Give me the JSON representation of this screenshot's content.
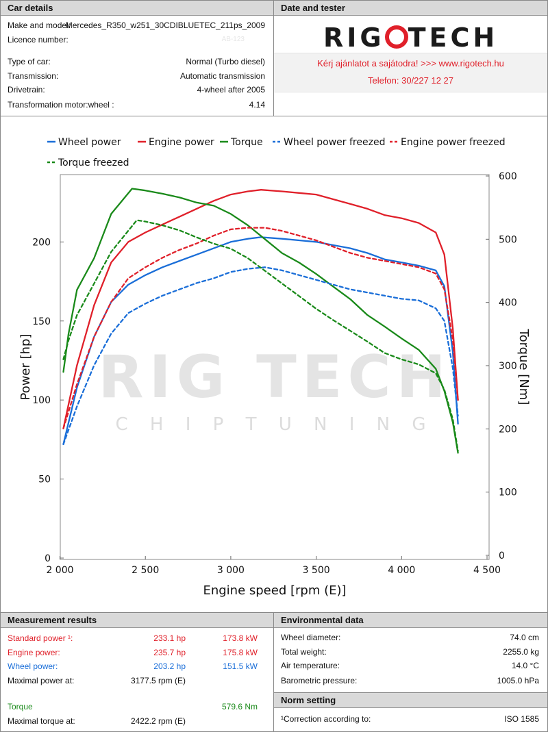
{
  "car_details": {
    "title": "Car details",
    "rows": [
      {
        "label": "Make and model:",
        "value": "Mercedes_R350_w251_30CDIBLUETEC_211ps_2009"
      },
      {
        "label": "Licence number:",
        "value": "AB-123"
      },
      {
        "label": "Type of car:",
        "value": "Normal (Turbo diesel)"
      },
      {
        "label": "Transmission:",
        "value": "Automatic transmission"
      },
      {
        "label": "Drivetrain:",
        "value": "4-wheel after 2005"
      },
      {
        "label": "Transformation motor:wheel :",
        "value": "4.14"
      }
    ]
  },
  "date_tester": {
    "title": "Date and tester",
    "logo_text": [
      "RIG",
      "TECH"
    ],
    "offer_line": "Kérj ajánlatot a sajátodra!  >>>  www.rigotech.hu",
    "phone_line": "Telefon: 30/227 12 27"
  },
  "watermark": {
    "big": "RIG TECH",
    "small": "C H I P T U N I N G"
  },
  "colors": {
    "wheel": "#1a6ed8",
    "engine": "#e0202a",
    "torque": "#1a8a1a"
  },
  "chart_data": {
    "type": "line",
    "xlabel": "Engine speed [rpm (E)]",
    "ylabel": "Power [hp]",
    "y2label": "Torque [Nm]",
    "xlim": [
      2000,
      4500
    ],
    "ylim": [
      0,
      240
    ],
    "y2lim": [
      0,
      600
    ],
    "xticks": [
      2000,
      2500,
      3000,
      3500,
      4000,
      4500
    ],
    "xtick_labels": [
      "2 000",
      "2 500",
      "3 000",
      "3 500",
      "4 000",
      "4 500"
    ],
    "yticks": [
      0,
      50,
      100,
      150,
      200
    ],
    "y2ticks": [
      0,
      100,
      200,
      300,
      400,
      500,
      600
    ],
    "legend": [
      "Wheel power",
      "Engine power",
      "Torque",
      "Wheel power freezed",
      "Engine power freezed",
      "Torque freezed"
    ],
    "series": [
      {
        "name": "Wheel power",
        "axis": "left",
        "style": "solid",
        "color": "#1a6ed8",
        "x": [
          2020,
          2100,
          2200,
          2300,
          2400,
          2500,
          2600,
          2700,
          2800,
          2900,
          3000,
          3100,
          3177,
          3300,
          3400,
          3500,
          3600,
          3700,
          3800,
          3900,
          4000,
          4100,
          4200,
          4250,
          4300,
          4330
        ],
        "y": [
          72,
          108,
          140,
          162,
          173,
          179,
          184,
          188,
          192,
          196,
          200,
          202,
          203,
          202,
          201,
          200,
          198,
          196,
          193,
          189,
          187,
          185,
          182,
          172,
          130,
          85
        ]
      },
      {
        "name": "Engine power",
        "axis": "left",
        "style": "solid",
        "color": "#e0202a",
        "x": [
          2020,
          2100,
          2200,
          2300,
          2400,
          2500,
          2600,
          2700,
          2800,
          2900,
          3000,
          3100,
          3177,
          3300,
          3400,
          3500,
          3600,
          3700,
          3800,
          3900,
          4000,
          4100,
          4200,
          4250,
          4300,
          4330
        ],
        "y": [
          82,
          122,
          160,
          187,
          200,
          206,
          211,
          216,
          221,
          226,
          230,
          232,
          233,
          232,
          231,
          230,
          227,
          224,
          221,
          217,
          215,
          212,
          206,
          192,
          145,
          100
        ]
      },
      {
        "name": "Torque",
        "axis": "right",
        "style": "solid",
        "color": "#1a8a1a",
        "x": [
          2020,
          2050,
          2100,
          2200,
          2300,
          2422,
          2500,
          2600,
          2700,
          2800,
          2900,
          3000,
          3100,
          3200,
          3300,
          3400,
          3500,
          3600,
          3700,
          3800,
          3900,
          4000,
          4100,
          4200,
          4250,
          4300,
          4330
        ],
        "y": [
          290,
          350,
          420,
          470,
          540,
          580,
          577,
          572,
          566,
          558,
          553,
          540,
          522,
          500,
          478,
          463,
          445,
          425,
          405,
          380,
          362,
          343,
          325,
          295,
          260,
          210,
          162
        ]
      },
      {
        "name": "Wheel power freezed",
        "axis": "left",
        "style": "dashed",
        "color": "#1a6ed8",
        "x": [
          2020,
          2100,
          2200,
          2300,
          2400,
          2500,
          2600,
          2700,
          2800,
          2900,
          3000,
          3100,
          3200,
          3300,
          3400,
          3500,
          3600,
          3700,
          3800,
          3900,
          4000,
          4100,
          4200,
          4250,
          4300,
          4330
        ],
        "y": [
          72,
          96,
          122,
          142,
          155,
          161,
          166,
          170,
          174,
          177,
          181,
          183,
          184,
          182,
          179,
          176,
          173,
          170,
          168,
          166,
          164,
          163,
          158,
          150,
          120,
          90
        ]
      },
      {
        "name": "Engine power freezed",
        "axis": "left",
        "style": "dashed",
        "color": "#e0202a",
        "x": [
          2020,
          2100,
          2200,
          2300,
          2400,
          2500,
          2600,
          2700,
          2800,
          2900,
          3000,
          3100,
          3200,
          3300,
          3400,
          3500,
          3600,
          3700,
          3800,
          3900,
          4000,
          4100,
          4200,
          4250,
          4300,
          4330
        ],
        "y": [
          82,
          110,
          140,
          162,
          177,
          184,
          190,
          195,
          199,
          204,
          208,
          209,
          209,
          207,
          204,
          201,
          197,
          193,
          190,
          188,
          186,
          184,
          180,
          170,
          138,
          100
        ]
      },
      {
        "name": "Torque freezed",
        "axis": "right",
        "style": "dashed",
        "color": "#1a8a1a",
        "x": [
          2020,
          2050,
          2100,
          2200,
          2300,
          2450,
          2500,
          2600,
          2700,
          2800,
          2900,
          3000,
          3100,
          3200,
          3300,
          3400,
          3500,
          3600,
          3700,
          3800,
          3900,
          4000,
          4100,
          4200,
          4250,
          4300,
          4330
        ],
        "y": [
          310,
          340,
          380,
          430,
          480,
          530,
          528,
          522,
          514,
          503,
          493,
          485,
          470,
          450,
          430,
          410,
          390,
          372,
          355,
          338,
          320,
          310,
          302,
          288,
          262,
          215,
          165
        ]
      }
    ]
  },
  "measurement": {
    "title": "Measurement results",
    "rows": [
      {
        "label": "Standard power ¹:",
        "v1": "233.1 hp",
        "v2": "173.8 kW",
        "color": "red"
      },
      {
        "label": "Engine power:",
        "v1": "235.7 hp",
        "v2": "175.8 kW",
        "color": "red"
      },
      {
        "label": "Wheel power:",
        "v1": "203.2 hp",
        "v2": "151.5 kW",
        "color": "blue"
      },
      {
        "label": "Maximal power at:",
        "v1": "3177.5 rpm (E)",
        "v2": "",
        "color": ""
      },
      {
        "label": "Torque",
        "v1": "",
        "v2": "579.6 Nm",
        "color": "green"
      },
      {
        "label": "Maximal torque at:",
        "v1": "2422.2 rpm (E)",
        "v2": "",
        "color": ""
      }
    ]
  },
  "environment": {
    "title": "Environmental data",
    "rows": [
      {
        "label": "Wheel diameter:",
        "value": "74.0 cm"
      },
      {
        "label": "Total weight:",
        "value": "2255.0 kg"
      },
      {
        "label": "Air temperature:",
        "value": "14.0 °C"
      },
      {
        "label": "Barometric pressure:",
        "value": "1005.0 hPa"
      }
    ]
  },
  "norm": {
    "title": "Norm setting",
    "label": "¹Correction according to:",
    "value": "ISO 1585"
  }
}
